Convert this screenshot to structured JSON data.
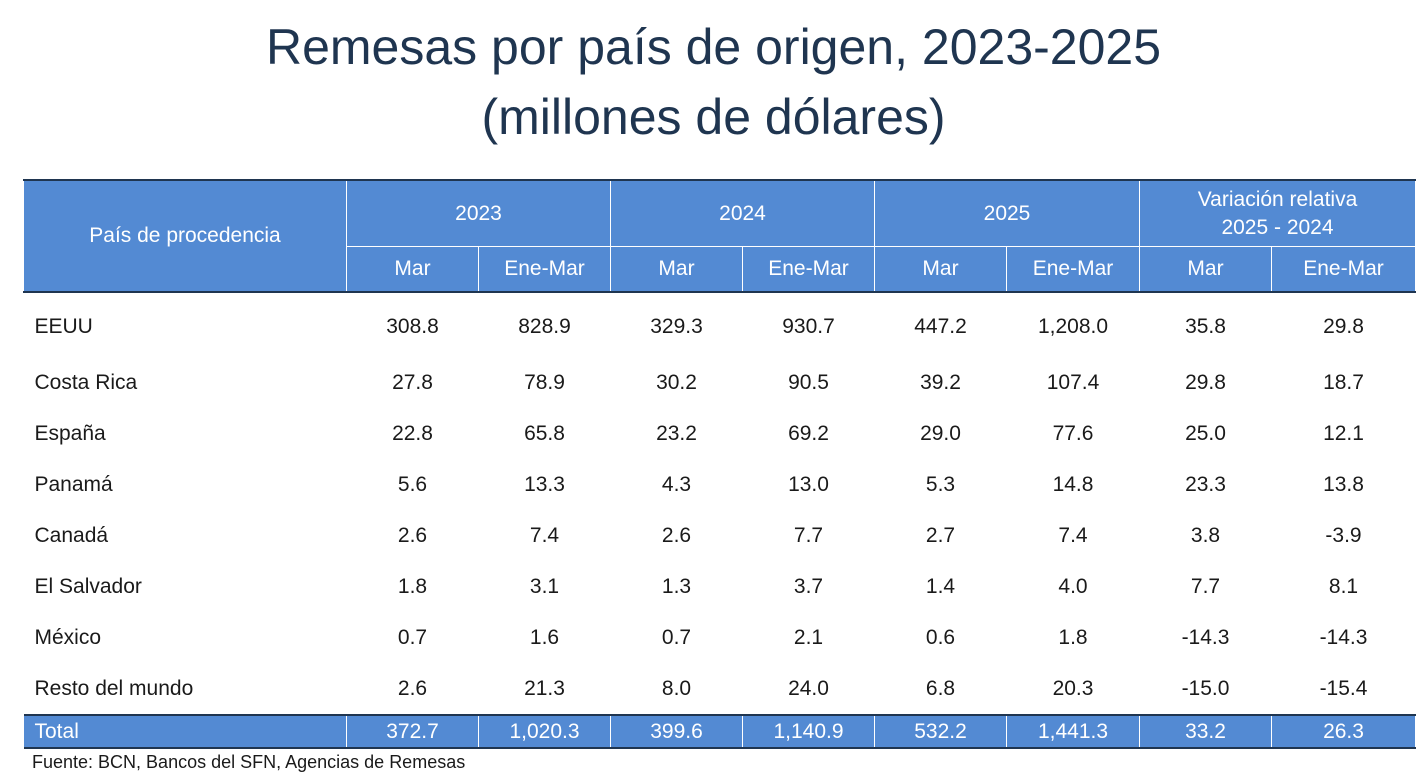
{
  "title_line1": "Remesas por país de origen, 2023-2025",
  "title_line2": "(millones de dólares)",
  "header": {
    "country": "País de procedencia",
    "groups": [
      "2023",
      "2024",
      "2025"
    ],
    "variation_line1": "Variación relativa",
    "variation_line2": "2025 - 2024",
    "sub_mar": "Mar",
    "sub_enemar": "Ene-Mar"
  },
  "rows": [
    {
      "country": "EEUU",
      "values": [
        "308.8",
        "828.9",
        "329.3",
        "930.7",
        "447.2",
        "1,208.0",
        "35.8",
        "29.8"
      ]
    },
    {
      "country": "Costa Rica",
      "values": [
        "27.8",
        "78.9",
        "30.2",
        "90.5",
        "39.2",
        "107.4",
        "29.8",
        "18.7"
      ]
    },
    {
      "country": "España",
      "values": [
        "22.8",
        "65.8",
        "23.2",
        "69.2",
        "29.0",
        "77.6",
        "25.0",
        "12.1"
      ]
    },
    {
      "country": "Panamá",
      "values": [
        "5.6",
        "13.3",
        "4.3",
        "13.0",
        "5.3",
        "14.8",
        "23.3",
        "13.8"
      ]
    },
    {
      "country": "Canadá",
      "values": [
        "2.6",
        "7.4",
        "2.6",
        "7.7",
        "2.7",
        "7.4",
        "3.8",
        "-3.9"
      ]
    },
    {
      "country": "El Salvador",
      "values": [
        "1.8",
        "3.1",
        "1.3",
        "3.7",
        "1.4",
        "4.0",
        "7.7",
        "8.1"
      ]
    },
    {
      "country": "México",
      "values": [
        "0.7",
        "1.6",
        "0.7",
        "2.1",
        "0.6",
        "1.8",
        "-14.3",
        "-14.3"
      ]
    },
    {
      "country": "Resto del mundo",
      "values": [
        "2.6",
        "21.3",
        "8.0",
        "24.0",
        "6.8",
        "20.3",
        "-15.0",
        "-15.4"
      ]
    }
  ],
  "total": {
    "label": "Total",
    "values": [
      "372.7",
      "1,020.3",
      "399.6",
      "1,140.9",
      "532.2",
      "1,441.3",
      "33.2",
      "26.3"
    ]
  },
  "source": "Fuente: BCN, Bancos del SFN, Agencias de Remesas",
  "colors": {
    "header_bg": "#538ad3",
    "title": "#1f3550",
    "border": "#1f3550"
  }
}
